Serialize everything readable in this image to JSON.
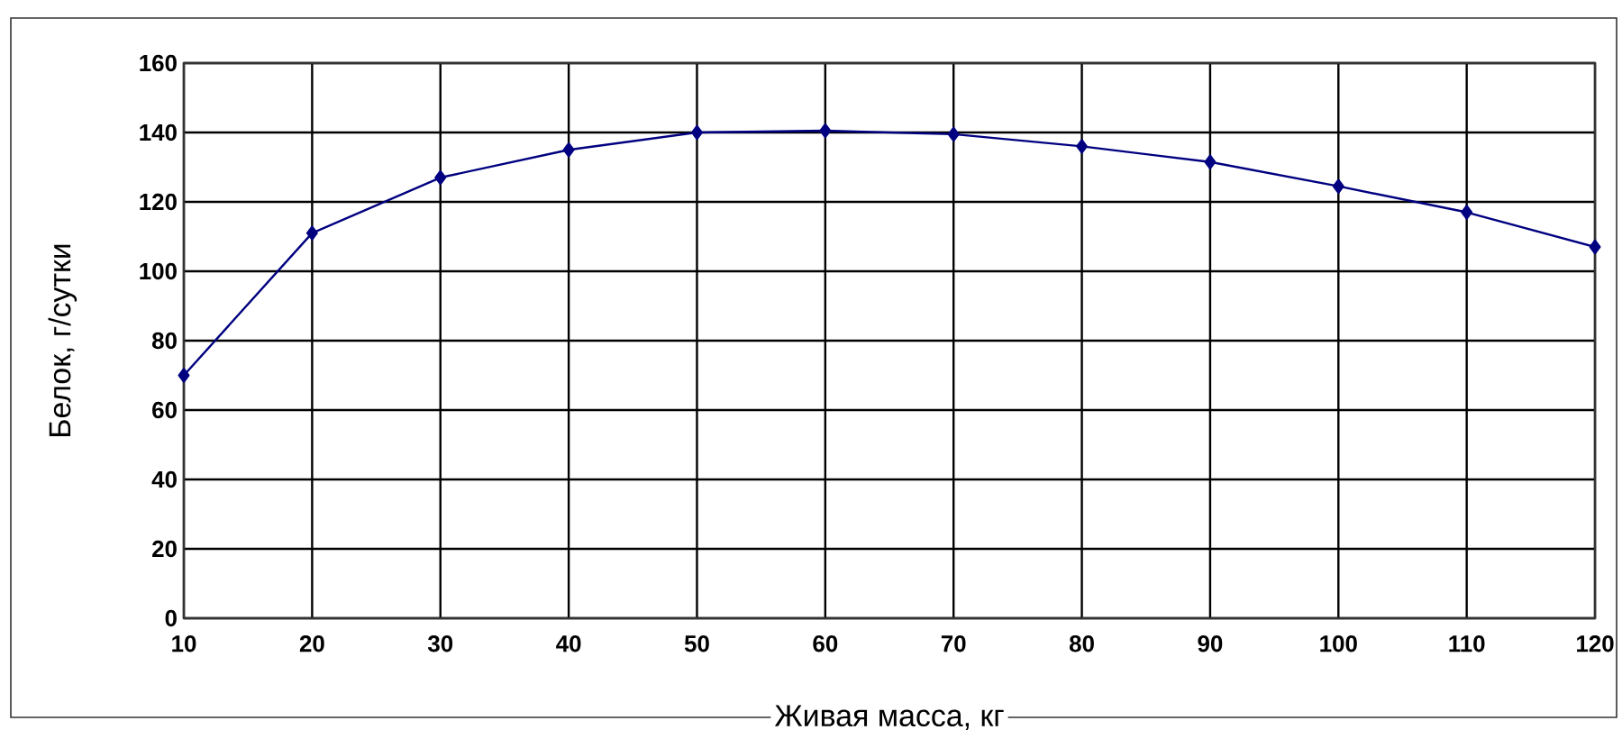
{
  "chart_data": {
    "type": "line",
    "xlabel": "Живая масса, кг",
    "ylabel": "Белок, г/сутки",
    "x": [
      10,
      20,
      30,
      40,
      50,
      60,
      70,
      80,
      90,
      100,
      110,
      120
    ],
    "series": [
      {
        "color": "#000080",
        "values": [
          70,
          111,
          127,
          135,
          140,
          140.5,
          139.5,
          136,
          131.5,
          124.5,
          117,
          107
        ]
      }
    ],
    "xlim": [
      10,
      120
    ],
    "xticks": [
      10,
      20,
      30,
      40,
      50,
      60,
      70,
      80,
      90,
      100,
      110,
      120
    ],
    "ylim": [
      0,
      160
    ],
    "yticks": [
      0,
      20,
      40,
      60,
      80,
      100,
      120,
      140,
      160
    ],
    "grid": true,
    "marker": "diamond",
    "line_style": "solid"
  }
}
